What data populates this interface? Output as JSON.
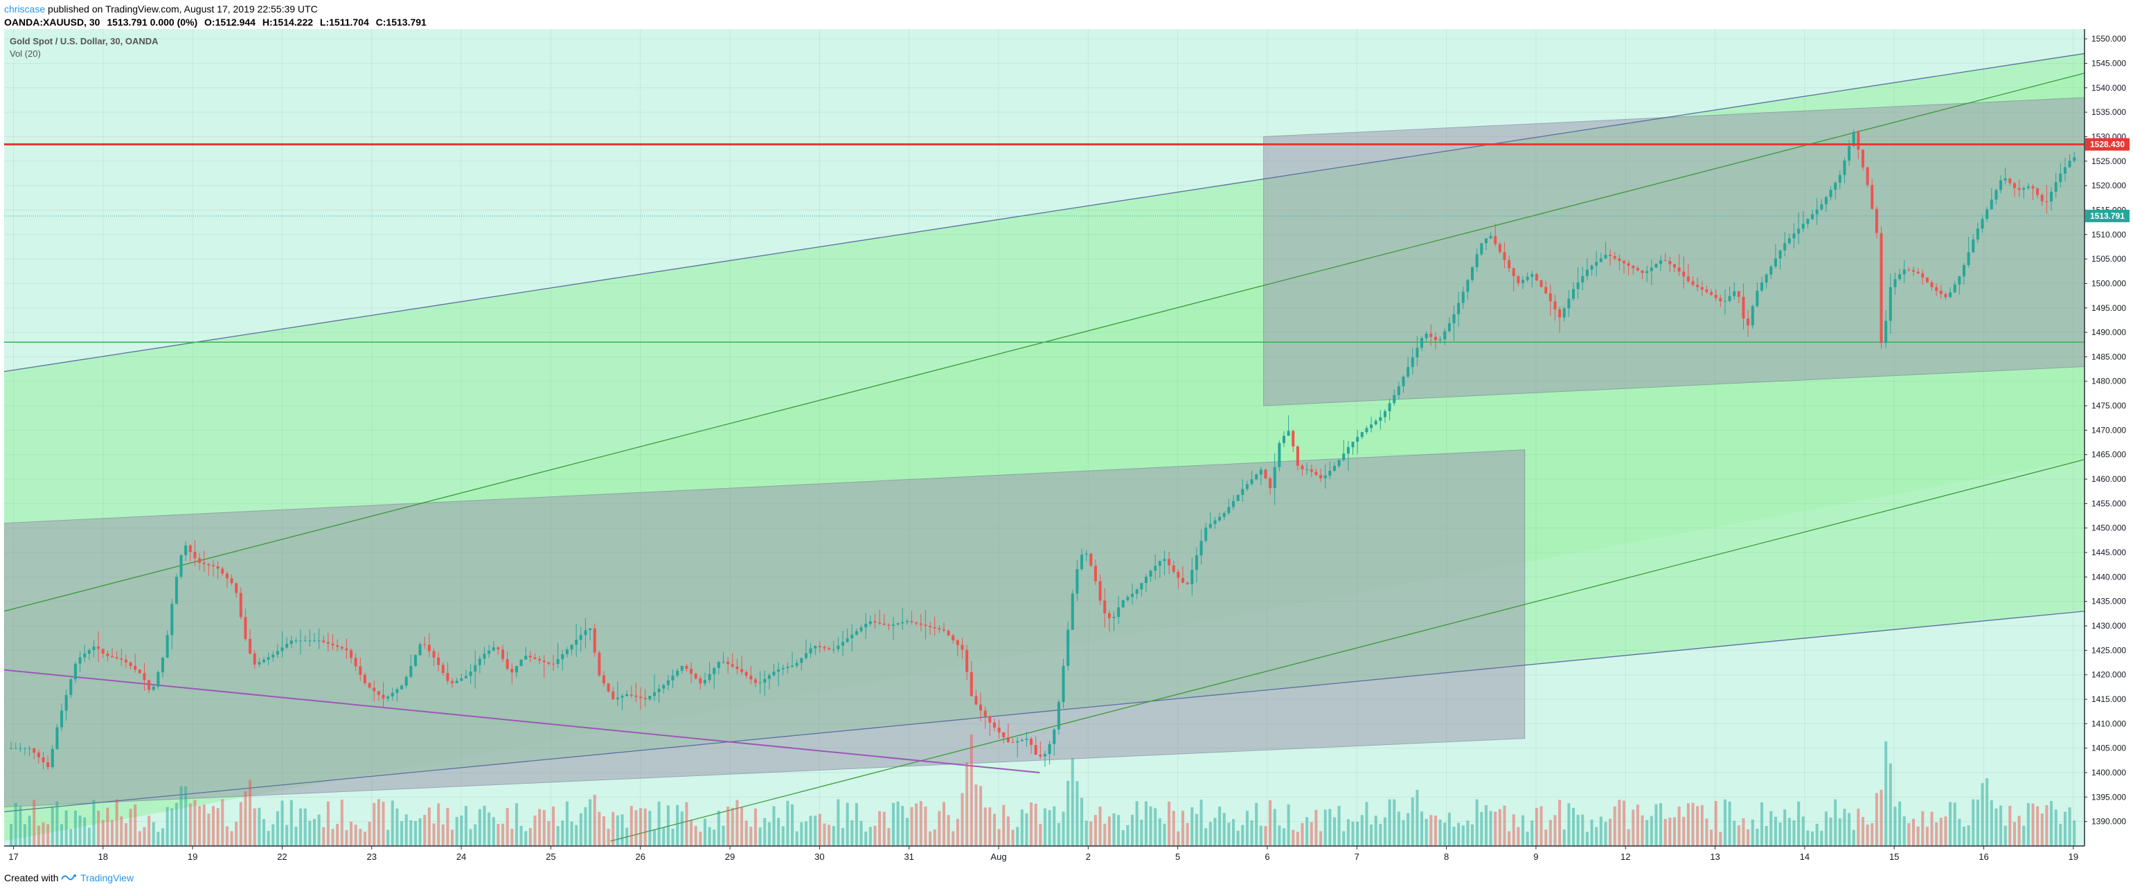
{
  "header": {
    "author": "chriscase",
    "published_text": " published on TradingView.com, August 17, 2019 22:55:39 UTC",
    "symbol": "OANDA:XAUUSD, 30",
    "change": "1513.791 0.000 (0%)",
    "open": "O:1512.944",
    "high": "H:1514.222",
    "low": "L:1511.704",
    "close": "C:1513.791"
  },
  "legend": {
    "title": "Gold Spot / U.S. Dollar, 30, OANDA",
    "indicator": "Vol (20)"
  },
  "footer": {
    "created_with": "Created with",
    "brand": "TradingView"
  },
  "colors": {
    "up": "#26a69a",
    "down": "#ef5350",
    "band_fill": "#a8f2b6",
    "light_fill": "#d2f6ea",
    "grey_box": "#9e9eb0",
    "resistance": "#e53935",
    "price_badge": "#26a69a"
  },
  "chart_data": {
    "type": "candlestick",
    "y_axis": {
      "range": [
        1385,
        1552
      ],
      "ticks": [
        1550,
        1545,
        1540,
        1535,
        1530,
        1525,
        1520,
        1515,
        1510,
        1505,
        1500,
        1495,
        1490,
        1485,
        1480,
        1475,
        1470,
        1465,
        1460,
        1455,
        1450,
        1445,
        1440,
        1435,
        1430,
        1425,
        1420,
        1415,
        1410,
        1405,
        1400,
        1395,
        1390
      ],
      "tick_labels": [
        "1550.000",
        "1545.000",
        "1540.000",
        "1535.000",
        "1530.000",
        "1525.000",
        "1520.000",
        "1515.000",
        "1510.000",
        "1505.000",
        "1500.000",
        "1495.000",
        "1490.000",
        "1485.000",
        "1480.000",
        "1475.000",
        "1470.000",
        "1465.000",
        "1460.000",
        "1455.000",
        "1450.000",
        "1445.000",
        "1440.000",
        "1435.000",
        "1430.000",
        "1425.000",
        "1420.000",
        "1415.000",
        "1410.000",
        "1405.000",
        "1400.000",
        "1395.000",
        "1390.000"
      ]
    },
    "x_axis": {
      "range": [
        0,
        22.3
      ],
      "labels": [
        {
          "t": 0.1,
          "label": "17"
        },
        {
          "t": 1.06,
          "label": "18"
        },
        {
          "t": 2.02,
          "label": "19"
        },
        {
          "t": 2.98,
          "label": "22"
        },
        {
          "t": 3.94,
          "label": "23"
        },
        {
          "t": 4.9,
          "label": "24"
        },
        {
          "t": 5.86,
          "label": "25"
        },
        {
          "t": 6.82,
          "label": "26"
        },
        {
          "t": 7.78,
          "label": "29"
        },
        {
          "t": 8.74,
          "label": "30"
        },
        {
          "t": 9.7,
          "label": "31"
        },
        {
          "t": 10.66,
          "label": "Aug"
        },
        {
          "t": 11.62,
          "label": "2"
        },
        {
          "t": 12.58,
          "label": "5"
        },
        {
          "t": 13.54,
          "label": "6"
        },
        {
          "t": 14.5,
          "label": "7"
        },
        {
          "t": 15.46,
          "label": "8"
        },
        {
          "t": 16.42,
          "label": "9"
        },
        {
          "t": 17.38,
          "label": "12"
        },
        {
          "t": 18.34,
          "label": "13"
        },
        {
          "t": 19.3,
          "label": "14"
        },
        {
          "t": 20.26,
          "label": "15"
        },
        {
          "t": 21.22,
          "label": "16"
        },
        {
          "t": 22.18,
          "label": "19"
        }
      ]
    },
    "price_path": [
      [
        0.0,
        1405
      ],
      [
        0.3,
        1405
      ],
      [
        0.5,
        1401
      ],
      [
        0.6,
        1410
      ],
      [
        0.8,
        1423
      ],
      [
        1.0,
        1426
      ],
      [
        1.1,
        1424
      ],
      [
        1.3,
        1423
      ],
      [
        1.5,
        1420
      ],
      [
        1.6,
        1416
      ],
      [
        1.75,
        1425
      ],
      [
        1.85,
        1438
      ],
      [
        1.95,
        1447
      ],
      [
        2.1,
        1443
      ],
      [
        2.3,
        1442
      ],
      [
        2.5,
        1438
      ],
      [
        2.6,
        1428
      ],
      [
        2.7,
        1422
      ],
      [
        2.9,
        1424
      ],
      [
        3.1,
        1427
      ],
      [
        3.4,
        1427
      ],
      [
        3.7,
        1425
      ],
      [
        3.9,
        1418
      ],
      [
        4.1,
        1415
      ],
      [
        4.3,
        1418
      ],
      [
        4.5,
        1427
      ],
      [
        4.65,
        1423
      ],
      [
        4.8,
        1418
      ],
      [
        5.0,
        1420
      ],
      [
        5.15,
        1424
      ],
      [
        5.3,
        1426
      ],
      [
        5.45,
        1420
      ],
      [
        5.6,
        1424
      ],
      [
        5.75,
        1423
      ],
      [
        5.9,
        1422
      ],
      [
        6.05,
        1425
      ],
      [
        6.3,
        1430
      ],
      [
        6.4,
        1420
      ],
      [
        6.55,
        1415
      ],
      [
        6.7,
        1416
      ],
      [
        6.9,
        1415
      ],
      [
        7.1,
        1418
      ],
      [
        7.3,
        1422
      ],
      [
        7.5,
        1418
      ],
      [
        7.7,
        1423
      ],
      [
        7.9,
        1421
      ],
      [
        8.1,
        1418
      ],
      [
        8.3,
        1421
      ],
      [
        8.5,
        1422
      ],
      [
        8.7,
        1426
      ],
      [
        8.9,
        1425
      ],
      [
        9.1,
        1428
      ],
      [
        9.3,
        1431
      ],
      [
        9.5,
        1430
      ],
      [
        9.7,
        1431
      ],
      [
        9.9,
        1430
      ],
      [
        10.1,
        1429
      ],
      [
        10.3,
        1425
      ],
      [
        10.4,
        1415
      ],
      [
        10.6,
        1410
      ],
      [
        10.8,
        1406
      ],
      [
        11.0,
        1407
      ],
      [
        11.1,
        1403
      ],
      [
        11.2,
        1404
      ],
      [
        11.3,
        1410
      ],
      [
        11.4,
        1425
      ],
      [
        11.5,
        1440
      ],
      [
        11.6,
        1446
      ],
      [
        11.7,
        1441
      ],
      [
        11.8,
        1433
      ],
      [
        11.9,
        1431
      ],
      [
        12.0,
        1435
      ],
      [
        12.15,
        1437
      ],
      [
        12.3,
        1441
      ],
      [
        12.45,
        1444
      ],
      [
        12.6,
        1440
      ],
      [
        12.7,
        1438
      ],
      [
        12.8,
        1444
      ],
      [
        12.9,
        1450
      ],
      [
        13.1,
        1453
      ],
      [
        13.3,
        1458
      ],
      [
        13.5,
        1462
      ],
      [
        13.6,
        1458
      ],
      [
        13.7,
        1468
      ],
      [
        13.8,
        1470
      ],
      [
        13.9,
        1462
      ],
      [
        14.0,
        1462
      ],
      [
        14.15,
        1460
      ],
      [
        14.3,
        1463
      ],
      [
        14.45,
        1467
      ],
      [
        14.6,
        1470
      ],
      [
        14.8,
        1473
      ],
      [
        14.95,
        1478
      ],
      [
        15.1,
        1484
      ],
      [
        15.25,
        1490
      ],
      [
        15.4,
        1488
      ],
      [
        15.55,
        1493
      ],
      [
        15.7,
        1500
      ],
      [
        15.85,
        1508
      ],
      [
        15.95,
        1510
      ],
      [
        16.1,
        1505
      ],
      [
        16.25,
        1500
      ],
      [
        16.4,
        1502
      ],
      [
        16.55,
        1498
      ],
      [
        16.7,
        1493
      ],
      [
        16.85,
        1499
      ],
      [
        17.0,
        1503
      ],
      [
        17.2,
        1506
      ],
      [
        17.4,
        1504
      ],
      [
        17.6,
        1502
      ],
      [
        17.8,
        1505
      ],
      [
        17.95,
        1503
      ],
      [
        18.1,
        1500
      ],
      [
        18.3,
        1498
      ],
      [
        18.45,
        1496
      ],
      [
        18.6,
        1499
      ],
      [
        18.7,
        1490
      ],
      [
        18.8,
        1498
      ],
      [
        18.95,
        1503
      ],
      [
        19.1,
        1508
      ],
      [
        19.3,
        1512
      ],
      [
        19.5,
        1516
      ],
      [
        19.7,
        1522
      ],
      [
        19.85,
        1531
      ],
      [
        20.0,
        1520
      ],
      [
        20.1,
        1510
      ],
      [
        20.15,
        1486
      ],
      [
        20.25,
        1500
      ],
      [
        20.4,
        1503
      ],
      [
        20.55,
        1502
      ],
      [
        20.7,
        1499
      ],
      [
        20.85,
        1497
      ],
      [
        21.0,
        1502
      ],
      [
        21.15,
        1510
      ],
      [
        21.3,
        1516
      ],
      [
        21.45,
        1522
      ],
      [
        21.6,
        1519
      ],
      [
        21.75,
        1520
      ],
      [
        21.9,
        1516
      ],
      [
        22.05,
        1522
      ],
      [
        22.2,
        1526
      ],
      [
        22.35,
        1524
      ],
      [
        22.5,
        1519
      ],
      [
        22.65,
        1512
      ],
      [
        22.8,
        1508
      ],
      [
        22.95,
        1514
      ],
      [
        23.1,
        1510
      ],
      [
        23.2,
        1514
      ]
    ],
    "volume_spikes": [
      [
        1.9,
        0.7
      ],
      [
        2.6,
        0.75
      ],
      [
        6.3,
        0.6
      ],
      [
        10.35,
        1.0
      ],
      [
        11.45,
        0.9
      ],
      [
        15.1,
        0.7
      ],
      [
        17.5,
        0.4
      ],
      [
        20.15,
        1.0
      ],
      [
        21.2,
        0.9
      ],
      [
        21.9,
        0.5
      ]
    ],
    "drawings": {
      "upper_band": {
        "top": [
          [
            0,
            1482
          ],
          [
            22.3,
            1547
          ]
        ],
        "bottom": [
          [
            0,
            1392
          ],
          [
            22.3,
            1433
          ]
        ]
      },
      "lower_band": {
        "top": [
          [
            0,
            1433
          ],
          [
            22.3,
            1543
          ]
        ],
        "bottom": [
          [
            0,
            1386
          ],
          [
            22.3,
            1464
          ]
        ]
      },
      "box_left": {
        "top": [
          [
            0,
            1451
          ],
          [
            16.3,
            1466
          ]
        ],
        "bottom": [
          [
            0,
            1393
          ],
          [
            16.3,
            1407
          ]
        ],
        "t_end": 16.3
      },
      "box_right": {
        "top": [
          [
            13.5,
            1530
          ],
          [
            22.3,
            1538
          ]
        ],
        "bottom": [
          [
            13.5,
            1475
          ],
          [
            22.3,
            1483
          ]
        ],
        "t_start": 13.5
      },
      "purple_trend": [
        [
          0,
          1421
        ],
        [
          11.1,
          1400
        ]
      ],
      "green_mid_line": [
        [
          0,
          1433
        ],
        [
          22.3,
          1543
        ]
      ],
      "green_lower_line": [
        [
          6.5,
          1386
        ],
        [
          22.3,
          1464
        ]
      ],
      "horizontal_green": 1488,
      "resistance_level": 1528.43,
      "resistance_label": "1528.430",
      "last_price": 1513.791,
      "last_price_label": "1513.791"
    }
  }
}
